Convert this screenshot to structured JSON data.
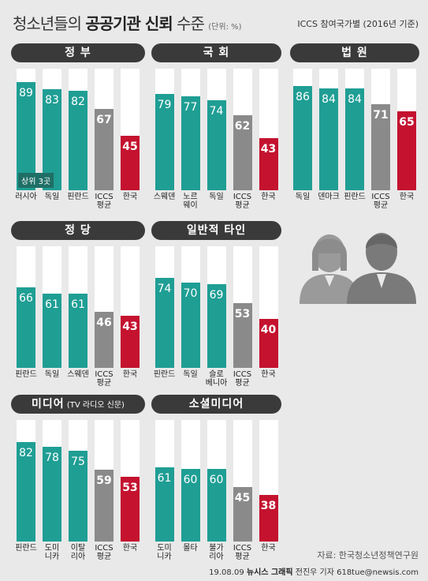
{
  "header": {
    "title_pre": "청소년들의 ",
    "title_bold": "공공기관 신뢰",
    "title_post": " 수준",
    "unit": "(단위: %)",
    "subtitle": "ICCS 참여국가별 (2016년 기준)"
  },
  "colors": {
    "country": "#1f9e94",
    "average": "#8a8a8a",
    "korea": "#c4122f"
  },
  "chart_data": [
    {
      "type": "bar",
      "title": "정 부",
      "categories": [
        "러시아",
        "독일",
        "핀란드",
        "ICCS\n평균",
        "한국"
      ],
      "values": [
        89,
        83,
        82,
        67,
        45
      ],
      "ylim": [
        0,
        100
      ],
      "annotation": "상위 3곳"
    },
    {
      "type": "bar",
      "title": "국 회",
      "categories": [
        "스웨덴",
        "노르\n웨이",
        "독일",
        "ICCS\n평균",
        "한국"
      ],
      "values": [
        79,
        77,
        74,
        62,
        43
      ],
      "ylim": [
        0,
        100
      ]
    },
    {
      "type": "bar",
      "title": "법 원",
      "categories": [
        "독일",
        "덴마크",
        "핀란드",
        "ICCS\n평균",
        "한국"
      ],
      "values": [
        86,
        84,
        84,
        71,
        65
      ],
      "ylim": [
        0,
        100
      ]
    },
    {
      "type": "bar",
      "title": "정 당",
      "categories": [
        "핀란드",
        "독일",
        "스웨덴",
        "ICCS\n평균",
        "한국"
      ],
      "values": [
        66,
        61,
        61,
        46,
        43
      ],
      "ylim": [
        0,
        100
      ]
    },
    {
      "type": "bar",
      "title": "일반적 타인",
      "categories": [
        "핀란드",
        "독일",
        "슬로\n베니아",
        "ICCS\n평균",
        "한국"
      ],
      "values": [
        74,
        70,
        69,
        53,
        40
      ],
      "ylim": [
        0,
        100
      ]
    },
    {
      "type": "bar",
      "title": "미디어",
      "title_small": " (TV 라디오 신문)",
      "categories": [
        "핀란드",
        "도미\n니카",
        "이탈\n리아",
        "ICCS\n평균",
        "한국"
      ],
      "values": [
        82,
        78,
        75,
        59,
        53
      ],
      "ylim": [
        0,
        100
      ]
    },
    {
      "type": "bar",
      "title": "소셜미디어",
      "categories": [
        "도미\n니카",
        "몰타",
        "불가\n리아",
        "ICCS\n평균",
        "한국"
      ],
      "values": [
        61,
        60,
        60,
        45,
        38
      ],
      "ylim": [
        0,
        100
      ]
    }
  ],
  "footer": {
    "source": "자료: 한국청소년정책연구원",
    "credit_date": "19.08.09",
    "credit_bold": "뉴시스 그래픽",
    "credit_rest": " 전진우 기자 618tue@newsis.com"
  }
}
